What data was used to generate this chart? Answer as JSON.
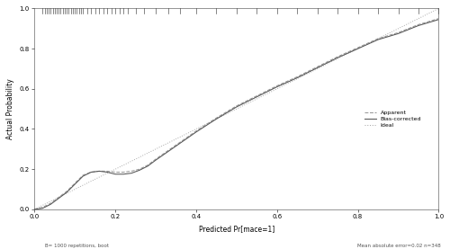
{
  "xlabel": "Predicted Pr[mace=1]",
  "ylabel": "Actual Probability",
  "xlim": [
    0.0,
    1.0
  ],
  "ylim": [
    0.0,
    1.0
  ],
  "xticks": [
    0.0,
    0.2,
    0.4,
    0.6,
    0.8,
    1.0
  ],
  "yticks": [
    0.0,
    0.2,
    0.4,
    0.6,
    0.8,
    1.0
  ],
  "footer_left": "B= 1000 repetitions, boot",
  "footer_right": "Mean absolute error=0.02 n=348",
  "legend_labels": [
    "Apparent",
    "Bias-corrected",
    "Ideal"
  ],
  "apparent_color": "#999999",
  "bias_corrected_color": "#555555",
  "ideal_color": "#aaaaaa",
  "background_color": "#ffffff",
  "tick_rug_x": [
    0.02,
    0.025,
    0.03,
    0.035,
    0.04,
    0.045,
    0.05,
    0.055,
    0.06,
    0.065,
    0.07,
    0.075,
    0.08,
    0.085,
    0.09,
    0.095,
    0.1,
    0.105,
    0.11,
    0.115,
    0.12,
    0.13,
    0.14,
    0.15,
    0.16,
    0.17,
    0.18,
    0.19,
    0.2,
    0.21,
    0.22,
    0.23,
    0.25,
    0.27,
    0.3,
    0.33,
    0.36,
    0.4,
    0.45,
    0.5,
    0.55,
    0.6,
    0.65,
    0.7,
    0.75,
    0.8,
    0.85,
    0.9,
    0.95,
    1.0
  ],
  "apparent_x": [
    0.0,
    0.02,
    0.04,
    0.06,
    0.08,
    0.1,
    0.12,
    0.14,
    0.16,
    0.18,
    0.2,
    0.22,
    0.24,
    0.26,
    0.28,
    0.3,
    0.35,
    0.4,
    0.45,
    0.5,
    0.55,
    0.6,
    0.65,
    0.7,
    0.75,
    0.8,
    0.85,
    0.9,
    0.95,
    1.0
  ],
  "apparent_y": [
    0.0,
    0.01,
    0.03,
    0.06,
    0.09,
    0.13,
    0.17,
    0.185,
    0.19,
    0.19,
    0.185,
    0.185,
    0.19,
    0.2,
    0.22,
    0.25,
    0.32,
    0.39,
    0.455,
    0.515,
    0.565,
    0.615,
    0.66,
    0.71,
    0.76,
    0.805,
    0.85,
    0.88,
    0.92,
    0.95
  ],
  "bias_x": [
    0.0,
    0.02,
    0.04,
    0.06,
    0.08,
    0.1,
    0.12,
    0.14,
    0.16,
    0.18,
    0.2,
    0.22,
    0.24,
    0.26,
    0.28,
    0.3,
    0.35,
    0.4,
    0.45,
    0.5,
    0.55,
    0.6,
    0.65,
    0.7,
    0.75,
    0.8,
    0.85,
    0.9,
    0.95,
    1.0
  ],
  "bias_y": [
    0.0,
    0.005,
    0.025,
    0.055,
    0.085,
    0.125,
    0.165,
    0.185,
    0.19,
    0.185,
    0.175,
    0.175,
    0.18,
    0.195,
    0.215,
    0.245,
    0.315,
    0.385,
    0.45,
    0.51,
    0.56,
    0.61,
    0.655,
    0.705,
    0.755,
    0.8,
    0.845,
    0.875,
    0.915,
    0.945
  ]
}
